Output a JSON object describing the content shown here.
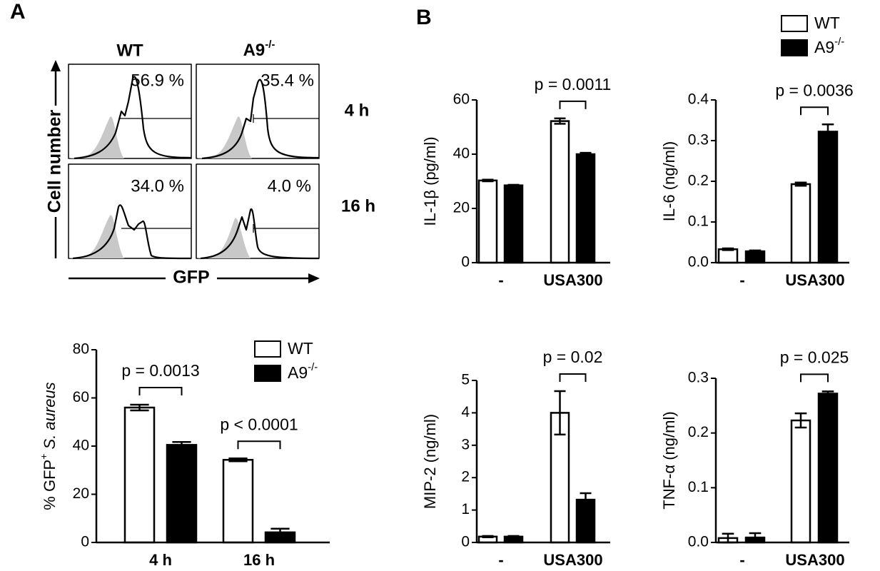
{
  "panel_labels": [
    "A",
    "B"
  ],
  "flow": {
    "columns": [
      {
        "text": "WT"
      },
      {
        "text": "A9",
        "sup": "-/-"
      }
    ],
    "rows": [
      "4 h",
      "16 h"
    ],
    "percentages": [
      [
        "56.9 %",
        "35.4 %"
      ],
      [
        "34.0 %",
        "4.0 %"
      ]
    ],
    "y_label": "Cell number",
    "x_label": "GFP"
  },
  "chart_data": [
    {
      "type": "bar",
      "categories": [
        "4 h",
        "16 h"
      ],
      "ylabel": [
        {
          "text": "% GFP"
        },
        {
          "text": "+",
          "sup": true
        },
        {
          "text": " S. aureus",
          "italic": true
        }
      ],
      "ylim": [
        0,
        80
      ],
      "yticks": [
        0,
        20,
        40,
        60,
        80
      ],
      "series": [
        {
          "name": "WT",
          "color": "#ffffff",
          "values": [
            56,
            34.3
          ],
          "errors": [
            1.2,
            0.6
          ]
        },
        {
          "name": "A9",
          "name_sup": "-/-",
          "color": "#000000",
          "values": [
            40.5,
            4.2
          ],
          "errors": [
            1.2,
            1.5
          ]
        }
      ],
      "annotations": [
        {
          "text": "p = 0.0013",
          "category": "4 h"
        },
        {
          "text": "p < 0.0001",
          "category": "16 h"
        }
      ],
      "legend": "upper right"
    },
    {
      "type": "bar",
      "categories": [
        "-",
        "USA300"
      ],
      "ylabel": "IL-1β (pg/ml)",
      "ylim": [
        0,
        60
      ],
      "yticks": [
        0,
        20,
        40,
        60
      ],
      "series": [
        {
          "name": "WT",
          "color": "#ffffff",
          "values": [
            30.3,
            52.2
          ],
          "errors": [
            0.3,
            1.0
          ]
        },
        {
          "name": "A9",
          "name_sup": "-/-",
          "color": "#000000",
          "values": [
            28.5,
            40
          ],
          "errors": [
            0.2,
            0.5
          ]
        }
      ],
      "annotations": [
        {
          "text": "p = 0.0011",
          "category": "USA300"
        }
      ]
    },
    {
      "type": "bar",
      "categories": [
        "-",
        "USA300"
      ],
      "ylabel": "IL-6 (ng/ml)",
      "ylim": [
        0,
        0.4
      ],
      "yticks": [
        {
          "value": 0,
          "label": "0.0"
        },
        0.1,
        0.2,
        0.3,
        0.4
      ],
      "series": [
        {
          "name": "WT",
          "color": "#ffffff",
          "values": [
            0.033,
            0.193
          ],
          "errors": [
            0.002,
            0.004
          ]
        },
        {
          "name": "A9",
          "name_sup": "-/-",
          "color": "#000000",
          "values": [
            0.028,
            0.322
          ],
          "errors": [
            0.002,
            0.018
          ]
        }
      ],
      "annotations": [
        {
          "text": "p = 0.0036",
          "category": "USA300"
        }
      ],
      "legend": "above"
    },
    {
      "type": "bar",
      "categories": [
        "-",
        "USA300"
      ],
      "ylabel": "MIP-2 (ng/ml)",
      "ylim": [
        0,
        5
      ],
      "yticks": [
        0,
        1,
        2,
        3,
        4,
        5
      ],
      "series": [
        {
          "name": "WT",
          "color": "#ffffff",
          "values": [
            0.18,
            4.0
          ],
          "errors": [
            0.02,
            0.67
          ]
        },
        {
          "name": "A9",
          "name_sup": "-/-",
          "color": "#000000",
          "values": [
            0.18,
            1.32
          ],
          "errors": [
            0.02,
            0.2
          ]
        }
      ],
      "annotations": [
        {
          "text": "p = 0.02",
          "category": "USA300"
        }
      ]
    },
    {
      "type": "bar",
      "categories": [
        "-",
        "USA300"
      ],
      "ylabel": "TNF-α (ng/ml)",
      "ylim": [
        0,
        0.3
      ],
      "yticks": [
        {
          "value": 0,
          "label": "0.0"
        },
        0.1,
        0.2,
        0.3
      ],
      "series": [
        {
          "name": "WT",
          "color": "#ffffff",
          "values": [
            0.008,
            0.223
          ],
          "errors": [
            0.008,
            0.013
          ]
        },
        {
          "name": "A9",
          "name_sup": "-/-",
          "color": "#000000",
          "values": [
            0.009,
            0.272
          ],
          "errors": [
            0.008,
            0.004
          ]
        }
      ],
      "annotations": [
        {
          "text": "p = 0.025",
          "category": "USA300"
        }
      ]
    }
  ]
}
